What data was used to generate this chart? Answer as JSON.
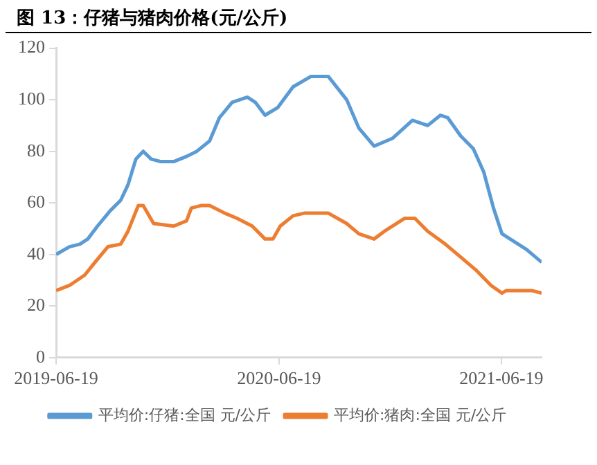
{
  "chart_data": {
    "type": "line",
    "title": "图 13：仔猪与猪肉价格(元/公斤)",
    "xlim": [
      "2019-06-19",
      "2021-08-24"
    ],
    "xticks": [
      "2019-06-19",
      "2020-06-19",
      "2021-06-19"
    ],
    "ylim": [
      0,
      120
    ],
    "yticks": [
      0,
      20,
      40,
      60,
      80,
      100,
      120
    ],
    "grid": false,
    "legend": "bottom",
    "marker": "none",
    "line_style": "solid",
    "series": [
      {
        "name": "平均价:仔猪:全国 元/公斤",
        "color": "#5b9bd5",
        "x": [
          "2019-06-19",
          "2019-07-11",
          "2019-07-28",
          "2019-08-10",
          "2019-08-26",
          "2019-09-16",
          "2019-10-03",
          "2019-10-15",
          "2019-10-28",
          "2019-11-09",
          "2019-11-22",
          "2019-12-08",
          "2019-12-29",
          "2020-01-19",
          "2020-02-05",
          "2020-02-26",
          "2020-03-13",
          "2020-04-03",
          "2020-04-28",
          "2020-05-11",
          "2020-05-27",
          "2020-06-17",
          "2020-07-12",
          "2020-08-10",
          "2020-09-08",
          "2020-10-08",
          "2020-10-28",
          "2020-11-22",
          "2020-12-22",
          "2021-01-24",
          "2021-02-18",
          "2021-03-11",
          "2021-03-23",
          "2021-04-13",
          "2021-05-04",
          "2021-05-21",
          "2021-06-06",
          "2021-06-20",
          "2021-07-10",
          "2021-07-30",
          "2021-08-24"
        ],
        "values": [
          40,
          43,
          44,
          46,
          51,
          57,
          61,
          67,
          77,
          80,
          77,
          76,
          76,
          78,
          80,
          84,
          93,
          99,
          101,
          99,
          94,
          97,
          105,
          109,
          109,
          100,
          89,
          82,
          85,
          92,
          90,
          94,
          93,
          86,
          81,
          72,
          58,
          48,
          45,
          42,
          37
        ]
      },
      {
        "name": "平均价:猪肉:全国 元/公斤",
        "color": "#ed7d31",
        "x": [
          "2019-06-19",
          "2019-07-11",
          "2019-08-05",
          "2019-08-22",
          "2019-09-12",
          "2019-10-03",
          "2019-10-15",
          "2019-11-01",
          "2019-11-09",
          "2019-11-26",
          "2019-12-29",
          "2020-01-19",
          "2020-01-27",
          "2020-02-13",
          "2020-02-26",
          "2020-03-22",
          "2020-04-11",
          "2020-05-06",
          "2020-05-27",
          "2020-06-09",
          "2020-06-21",
          "2020-07-12",
          "2020-07-30",
          "2020-09-08",
          "2020-10-08",
          "2020-10-28",
          "2020-11-22",
          "2020-12-09",
          "2021-01-11",
          "2021-01-28",
          "2021-02-18",
          "2021-03-19",
          "2021-04-13",
          "2021-05-08",
          "2021-06-02",
          "2021-06-20",
          "2021-06-27",
          "2021-08-08",
          "2021-08-24"
        ],
        "values": [
          26,
          28,
          32,
          37,
          43,
          44,
          49,
          59,
          59,
          52,
          51,
          53,
          58,
          59,
          59,
          56,
          54,
          51,
          46,
          46,
          51,
          55,
          56,
          56,
          52,
          48,
          46,
          49,
          54,
          54,
          49,
          44,
          39,
          34,
          28,
          25,
          26,
          26,
          25
        ]
      }
    ]
  }
}
